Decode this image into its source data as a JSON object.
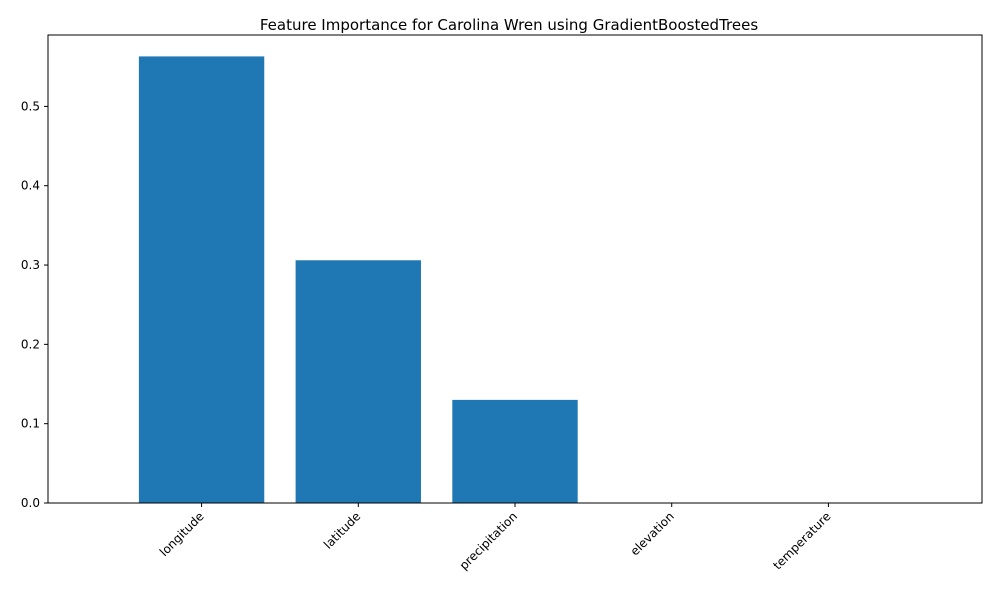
{
  "chart_data": {
    "type": "bar",
    "title": "Feature Importance for Carolina Wren using GradientBoostedTrees",
    "xlabel": "",
    "ylabel": "",
    "categories": [
      "longitude",
      "latitude",
      "precipitation",
      "elevation",
      "temperature"
    ],
    "values": [
      0.563,
      0.306,
      0.13,
      0.0,
      0.0
    ],
    "ylim": [
      0,
      0.59
    ],
    "yticks": [
      0.0,
      0.1,
      0.2,
      0.3,
      0.4,
      0.5
    ],
    "ytick_labels": [
      "0.0",
      "0.1",
      "0.2",
      "0.3",
      "0.4",
      "0.5"
    ],
    "bar_color": "#1f77b4",
    "grid": false,
    "legend": "none",
    "xtick_rotation": "45"
  }
}
